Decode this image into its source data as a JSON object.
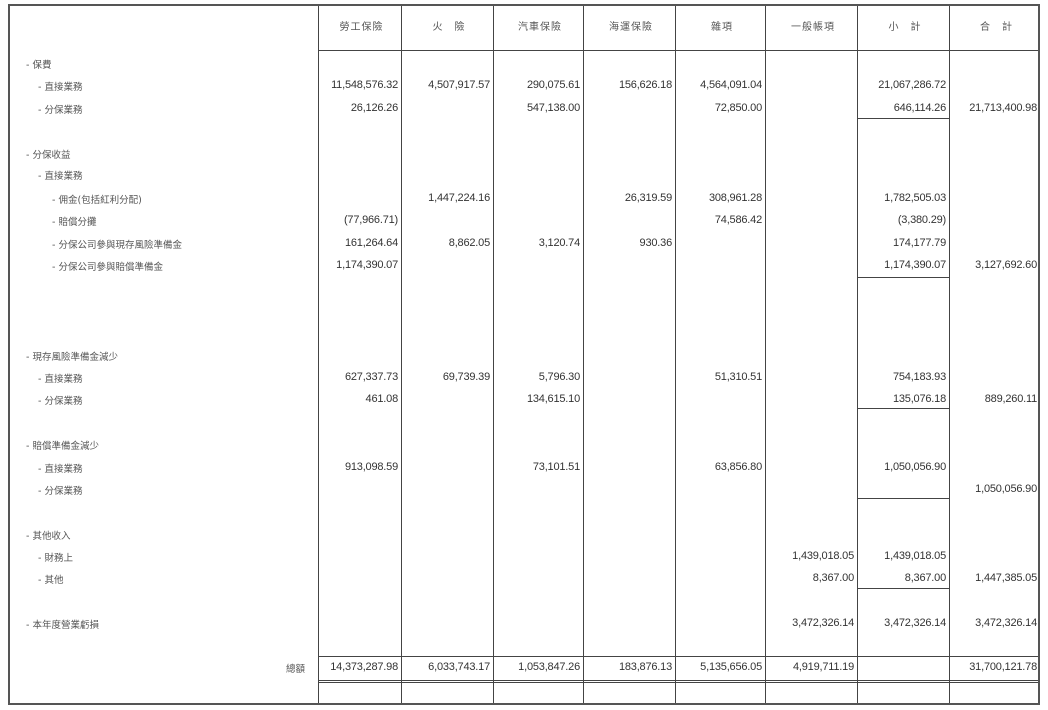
{
  "columns": [
    "勞工保險",
    "火　險",
    "汽車保險",
    "海運保險",
    "雜項",
    "一般帳項",
    "小　計",
    "合　計"
  ],
  "rows": [
    {
      "label": "- 保費",
      "level": 0,
      "values": [
        "",
        "",
        "",
        "",
        "",
        "",
        "",
        ""
      ]
    },
    {
      "label": "- 直接業務",
      "level": 1,
      "values": [
        "11,548,576.32",
        "4,507,917.57",
        "290,075.61",
        "156,626.18",
        "4,564,091.04",
        "",
        "21,067,286.72",
        ""
      ]
    },
    {
      "label": "- 分保業務",
      "level": 1,
      "values": [
        "26,126.26",
        "",
        "547,138.00",
        "",
        "72,850.00",
        "",
        "646,114.26",
        "21,713,400.98"
      ]
    },
    {
      "label": "- 分保收益",
      "level": 0,
      "values": [
        "",
        "",
        "",
        "",
        "",
        "",
        "",
        ""
      ]
    },
    {
      "label": "- 直接業務",
      "level": 1,
      "values": [
        "",
        "",
        "",
        "",
        "",
        "",
        "",
        ""
      ]
    },
    {
      "label": "- 佣金(包括紅利分配)",
      "level": 2,
      "values": [
        "",
        "1,447,224.16",
        "",
        "26,319.59",
        "308,961.28",
        "",
        "1,782,505.03",
        ""
      ]
    },
    {
      "label": "- 賠償分攤",
      "level": 2,
      "values": [
        "(77,966.71)",
        "",
        "",
        "",
        "74,586.42",
        "",
        "(3,380.29)",
        ""
      ]
    },
    {
      "label": "- 分保公司參與現存風險準備金",
      "level": 2,
      "values": [
        "161,264.64",
        "8,862.05",
        "3,120.74",
        "930.36",
        "",
        "",
        "174,177.79",
        ""
      ]
    },
    {
      "label": "- 分保公司參與賠償準備金",
      "level": 2,
      "values": [
        "1,174,390.07",
        "",
        "",
        "",
        "",
        "",
        "1,174,390.07",
        "3,127,692.60"
      ]
    },
    {
      "label": "- 現存風險準備金減少",
      "level": 0,
      "values": [
        "",
        "",
        "",
        "",
        "",
        "",
        "",
        ""
      ]
    },
    {
      "label": "- 直接業務",
      "level": 1,
      "values": [
        "627,337.73",
        "69,739.39",
        "5,796.30",
        "",
        "51,310.51",
        "",
        "754,183.93",
        ""
      ]
    },
    {
      "label": "- 分保業務",
      "level": 1,
      "values": [
        "461.08",
        "",
        "134,615.10",
        "",
        "",
        "",
        "135,076.18",
        "889,260.11"
      ]
    },
    {
      "label": "- 賠償準備金減少",
      "level": 0,
      "values": [
        "",
        "",
        "",
        "",
        "",
        "",
        "",
        ""
      ]
    },
    {
      "label": "- 直接業務",
      "level": 1,
      "values": [
        "913,098.59",
        "",
        "73,101.51",
        "",
        "63,856.80",
        "",
        "1,050,056.90",
        ""
      ]
    },
    {
      "label": "- 分保業務",
      "level": 1,
      "values": [
        "",
        "",
        "",
        "",
        "",
        "",
        "",
        "1,050,056.90"
      ]
    },
    {
      "label": "- 其他收入",
      "level": 0,
      "values": [
        "",
        "",
        "",
        "",
        "",
        "",
        "",
        ""
      ]
    },
    {
      "label": "- 財務上",
      "level": 1,
      "values": [
        "",
        "",
        "",
        "",
        "",
        "1,439,018.05",
        "1,439,018.05",
        ""
      ]
    },
    {
      "label": "- 其他",
      "level": 1,
      "values": [
        "",
        "",
        "",
        "",
        "",
        "8,367.00",
        "8,367.00",
        "1,447,385.05"
      ]
    },
    {
      "label": "- 本年度營業虧損",
      "level": 0,
      "values": [
        "",
        "",
        "",
        "",
        "",
        "3,472,326.14",
        "3,472,326.14",
        "3,472,326.14"
      ]
    }
  ],
  "totals": {
    "label": "總額",
    "values": [
      "14,373,287.98",
      "6,033,743.17",
      "1,053,847.26",
      "183,876.13",
      "5,135,656.05",
      "4,919,711.19",
      "",
      "31,700,121.78"
    ]
  }
}
